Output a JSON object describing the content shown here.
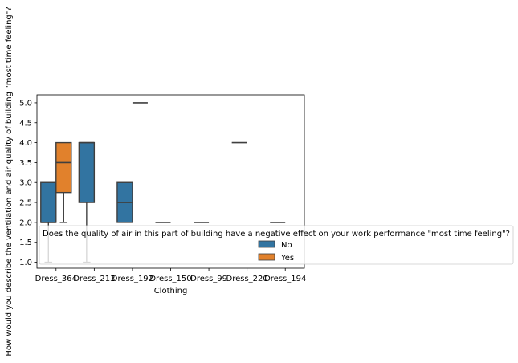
{
  "chart_data": {
    "type": "boxplot",
    "title": "",
    "xlabel": "Clothing",
    "ylabel": "How would you describe the ventilation and air quality of building  \"most time feeling\"?",
    "categories": [
      "Dress_364",
      "Dress_213",
      "Dress_192",
      "Dress_150",
      "Dress_99",
      "Dress_220",
      "Dress_194"
    ],
    "ylim": [
      0.85,
      5.2
    ],
    "yticks": [
      "1.0",
      "1.5",
      "2.0",
      "2.5",
      "3.0",
      "3.5",
      "4.0",
      "4.5",
      "5.0"
    ],
    "grid": false,
    "legend": {
      "title": "Does the quality of air in this part of building have a negative effect on your work performance \"most time feeling\"?",
      "placement": "lower-left",
      "entries": [
        {
          "label": "No",
          "color": "#1f77b4"
        },
        {
          "label": "Yes",
          "color": "#ff7f0e"
        }
      ]
    },
    "series": [
      {
        "key": "No",
        "color": "#3274a1",
        "boxes": [
          {
            "category": "Dress_364",
            "whislo": 1.0,
            "q1": 2.0,
            "med": 2.0,
            "q3": 3.0,
            "whishi": 3.0
          },
          {
            "category": "Dress_213",
            "whislo": 1.0,
            "q1": 2.5,
            "med": 4.0,
            "q3": 4.0,
            "whishi": 4.0
          },
          {
            "category": "Dress_192",
            "whislo": 2.0,
            "q1": 2.0,
            "med": 2.5,
            "q3": 3.0,
            "whishi": 3.0
          },
          {
            "category": "Dress_150",
            "whislo": 2.0,
            "q1": 2.0,
            "med": 2.0,
            "q3": 2.0,
            "whishi": 2.0
          },
          {
            "category": "Dress_99",
            "whislo": 2.0,
            "q1": 2.0,
            "med": 2.0,
            "q3": 2.0,
            "whishi": 2.0
          },
          {
            "category": "Dress_220",
            "whislo": 4.0,
            "q1": 4.0,
            "med": 4.0,
            "q3": 4.0,
            "whishi": 4.0
          },
          {
            "category": "Dress_194",
            "whislo": 2.0,
            "q1": 2.0,
            "med": 2.0,
            "q3": 2.0,
            "whishi": 2.0
          }
        ]
      },
      {
        "key": "Yes",
        "color": "#e1812c",
        "boxes": [
          {
            "category": "Dress_364",
            "whislo": 2.0,
            "q1": 2.75,
            "med": 3.5,
            "q3": 4.0,
            "whishi": 4.0
          },
          {
            "category": "Dress_192",
            "whislo": 5.0,
            "q1": 5.0,
            "med": 5.0,
            "q3": 5.0,
            "whishi": 5.0
          }
        ]
      }
    ]
  }
}
